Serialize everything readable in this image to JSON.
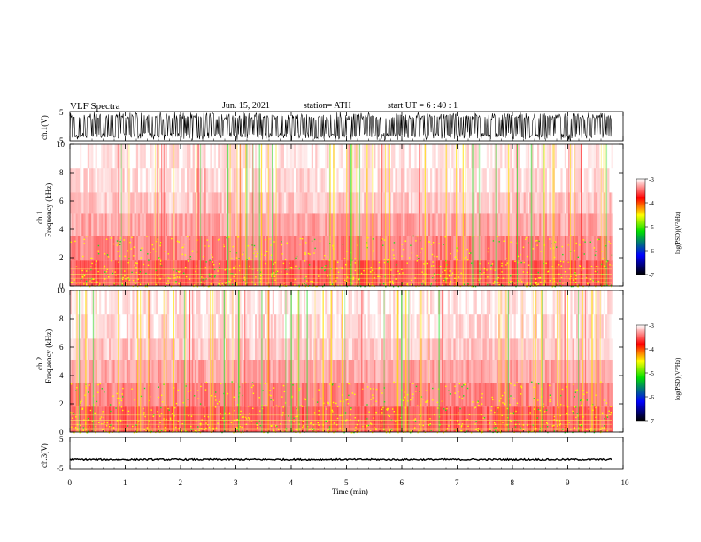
{
  "header": {
    "title": "VLF Spectra",
    "date": "Jun. 15, 2021",
    "station": "station= ATH",
    "start": "start UT =  6 : 40 : 1"
  },
  "colors": {
    "trace": "#000000",
    "colormap": [
      "#000000",
      "#0000ff",
      "#00e000",
      "#ffff00",
      "#ff0000",
      "#ffffff"
    ]
  },
  "chart_data": [
    {
      "type": "line",
      "ylabel": "ch.1(V)",
      "ylim": [
        -5,
        5
      ],
      "yticks": [
        "5",
        "-5"
      ],
      "x_range_min": [
        0,
        9.8
      ],
      "description_level": "dense oscillating signal filling the full amplitude range"
    },
    {
      "type": "heatmap",
      "ylabel_line1": "ch.1",
      "ylabel_line2": "Frequency (kHz)",
      "ylim": [
        0,
        10
      ],
      "yticks": [
        "0",
        "2",
        "4",
        "6",
        "8",
        "10"
      ],
      "colorbar": {
        "label": "log(PSD)(V²/Hz)",
        "range": [
          -7,
          -3
        ],
        "ticks": [
          "-3",
          "-4",
          "-5",
          "-6",
          "-7"
        ]
      }
    },
    {
      "type": "heatmap",
      "ylabel_line1": "ch.2",
      "ylabel_line2": "Frequency (kHz)",
      "ylim": [
        0,
        10
      ],
      "yticks": [
        "0",
        "2",
        "4",
        "6",
        "8",
        "10"
      ],
      "colorbar": {
        "label": "log(PSD)(V²/Hz)",
        "range": [
          -7,
          -3
        ],
        "ticks": [
          "-3",
          "-4",
          "-5",
          "-6",
          "-7"
        ]
      }
    },
    {
      "type": "line",
      "ylabel": "ch.3(V)",
      "ylim": [
        -5,
        5
      ],
      "yticks": [
        "5",
        "-5"
      ],
      "level_v": -1.8
    }
  ],
  "xaxis": {
    "label": "Time (min)",
    "ticks": [
      "0",
      "1",
      "2",
      "3",
      "4",
      "5",
      "6",
      "7",
      "8",
      "9",
      "10"
    ],
    "range": [
      0,
      10
    ]
  }
}
